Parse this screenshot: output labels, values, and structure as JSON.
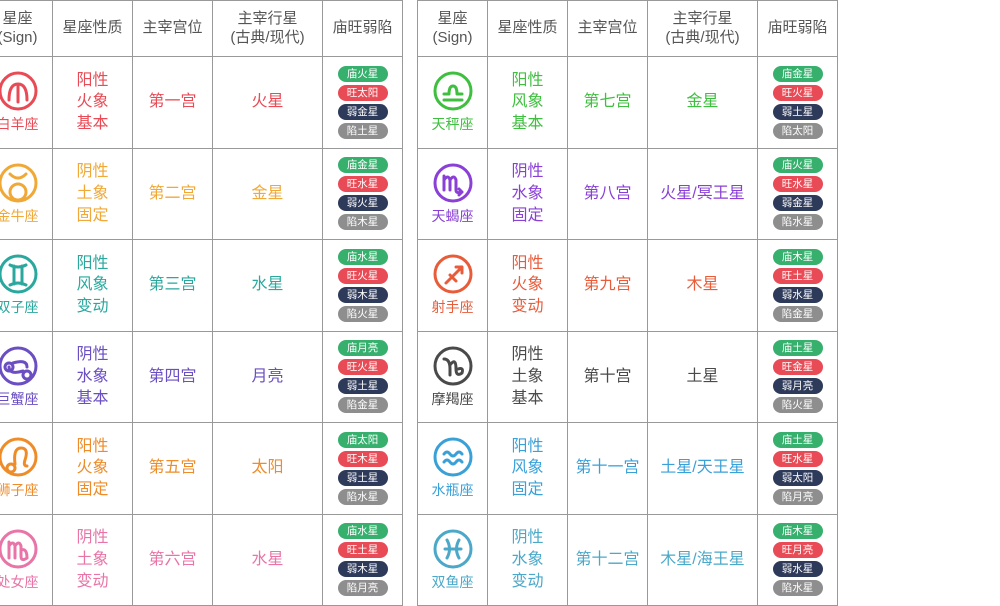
{
  "colors": {
    "pill_green": "#37b06e",
    "pill_red": "#e84b55",
    "pill_navy": "#2d3a5a",
    "pill_gray": "#8e8e8e",
    "border": "#999999",
    "header": "#555555",
    "bg": "#ffffff"
  },
  "headers": {
    "sign": "星座\n(Sign)",
    "nature": "星座性质",
    "house": "主宰宫位",
    "planet": "主宰行星\n(古典/现代)",
    "dignity": "庙旺弱陷"
  },
  "glyph_stroke": 3,
  "circle_r": 18,
  "icon_box": 42,
  "left": [
    {
      "name": "白羊座",
      "color": "#e84b55",
      "glyph": "aries",
      "nature": [
        "阳性",
        "火象",
        "基本"
      ],
      "house": "第一宫",
      "planet": "火星",
      "dignity": [
        [
          "庙火星",
          "pill_green"
        ],
        [
          "旺太阳",
          "pill_red"
        ],
        [
          "弱金星",
          "pill_navy"
        ],
        [
          "陷土星",
          "pill_gray"
        ]
      ]
    },
    {
      "name": "金牛座",
      "color": "#f0a836",
      "glyph": "taurus",
      "nature": [
        "阴性",
        "土象",
        "固定"
      ],
      "house": "第二宫",
      "planet": "金星",
      "dignity": [
        [
          "庙金星",
          "pill_green"
        ],
        [
          "旺水星",
          "pill_red"
        ],
        [
          "弱火星",
          "pill_navy"
        ],
        [
          "陷木星",
          "pill_gray"
        ]
      ]
    },
    {
      "name": "双子座",
      "color": "#2aa89e",
      "glyph": "gemini",
      "nature": [
        "阳性",
        "风象",
        "变动"
      ],
      "house": "第三宫",
      "planet": "水星",
      "dignity": [
        [
          "庙水星",
          "pill_green"
        ],
        [
          "旺火星",
          "pill_red"
        ],
        [
          "弱木星",
          "pill_navy"
        ],
        [
          "陷火星",
          "pill_gray"
        ]
      ]
    },
    {
      "name": "巨蟹座",
      "color": "#6a4ec2",
      "glyph": "cancer",
      "nature": [
        "阴性",
        "水象",
        "基本"
      ],
      "house": "第四宫",
      "planet": "月亮",
      "dignity": [
        [
          "庙月亮",
          "pill_green"
        ],
        [
          "旺火星",
          "pill_red"
        ],
        [
          "弱土星",
          "pill_navy"
        ],
        [
          "陷金星",
          "pill_gray"
        ]
      ]
    },
    {
      "name": "狮子座",
      "color": "#ef8c2a",
      "glyph": "leo",
      "nature": [
        "阳性",
        "火象",
        "固定"
      ],
      "house": "第五宫",
      "planet": "太阳",
      "dignity": [
        [
          "庙太阳",
          "pill_green"
        ],
        [
          "旺木星",
          "pill_red"
        ],
        [
          "弱土星",
          "pill_navy"
        ],
        [
          "陷水星",
          "pill_gray"
        ]
      ]
    },
    {
      "name": "处女座",
      "color": "#e874a8",
      "glyph": "virgo",
      "nature": [
        "阴性",
        "土象",
        "变动"
      ],
      "house": "第六宫",
      "planet": "水星",
      "dignity": [
        [
          "庙水星",
          "pill_green"
        ],
        [
          "旺土星",
          "pill_red"
        ],
        [
          "弱木星",
          "pill_navy"
        ],
        [
          "陷月亮",
          "pill_gray"
        ]
      ]
    }
  ],
  "right": [
    {
      "name": "天秤座",
      "color": "#3fbf3f",
      "glyph": "libra",
      "nature": [
        "阳性",
        "风象",
        "基本"
      ],
      "house": "第七宫",
      "planet": "金星",
      "dignity": [
        [
          "庙金星",
          "pill_green"
        ],
        [
          "旺火星",
          "pill_red"
        ],
        [
          "弱土星",
          "pill_navy"
        ],
        [
          "陷太阳",
          "pill_gray"
        ]
      ]
    },
    {
      "name": "天蝎座",
      "color": "#8a3fd6",
      "glyph": "scorpio",
      "nature": [
        "阴性",
        "水象",
        "固定"
      ],
      "house": "第八宫",
      "planet": "火星/冥王星",
      "dignity": [
        [
          "庙火星",
          "pill_green"
        ],
        [
          "旺水星",
          "pill_red"
        ],
        [
          "弱金星",
          "pill_navy"
        ],
        [
          "陷水星",
          "pill_gray"
        ]
      ]
    },
    {
      "name": "射手座",
      "color": "#e85c3a",
      "glyph": "sagittarius",
      "nature": [
        "阳性",
        "火象",
        "变动"
      ],
      "house": "第九宫",
      "planet": "木星",
      "dignity": [
        [
          "庙木星",
          "pill_green"
        ],
        [
          "旺土星",
          "pill_red"
        ],
        [
          "弱水星",
          "pill_navy"
        ],
        [
          "陷金星",
          "pill_gray"
        ]
      ]
    },
    {
      "name": "摩羯座",
      "color": "#4a4a4a",
      "glyph": "capricorn",
      "nature": [
        "阴性",
        "土象",
        "基本"
      ],
      "house": "第十宫",
      "planet": "土星",
      "dignity": [
        [
          "庙土星",
          "pill_green"
        ],
        [
          "旺金星",
          "pill_red"
        ],
        [
          "弱月亮",
          "pill_navy"
        ],
        [
          "陷火星",
          "pill_gray"
        ]
      ]
    },
    {
      "name": "水瓶座",
      "color": "#3aa0d8",
      "glyph": "aquarius",
      "nature": [
        "阳性",
        "风象",
        "固定"
      ],
      "house": "第十一宫",
      "planet": "土星/天王星",
      "dignity": [
        [
          "庙土星",
          "pill_green"
        ],
        [
          "旺水星",
          "pill_red"
        ],
        [
          "弱太阳",
          "pill_navy"
        ],
        [
          "陷月亮",
          "pill_gray"
        ]
      ]
    },
    {
      "name": "双鱼座",
      "color": "#4ba8c9",
      "glyph": "pisces",
      "nature": [
        "阴性",
        "水象",
        "变动"
      ],
      "house": "第十二宫",
      "planet": "木星/海王星",
      "dignity": [
        [
          "庙木星",
          "pill_green"
        ],
        [
          "旺月亮",
          "pill_red"
        ],
        [
          "弱水星",
          "pill_navy"
        ],
        [
          "陷水星",
          "pill_gray"
        ]
      ]
    }
  ]
}
